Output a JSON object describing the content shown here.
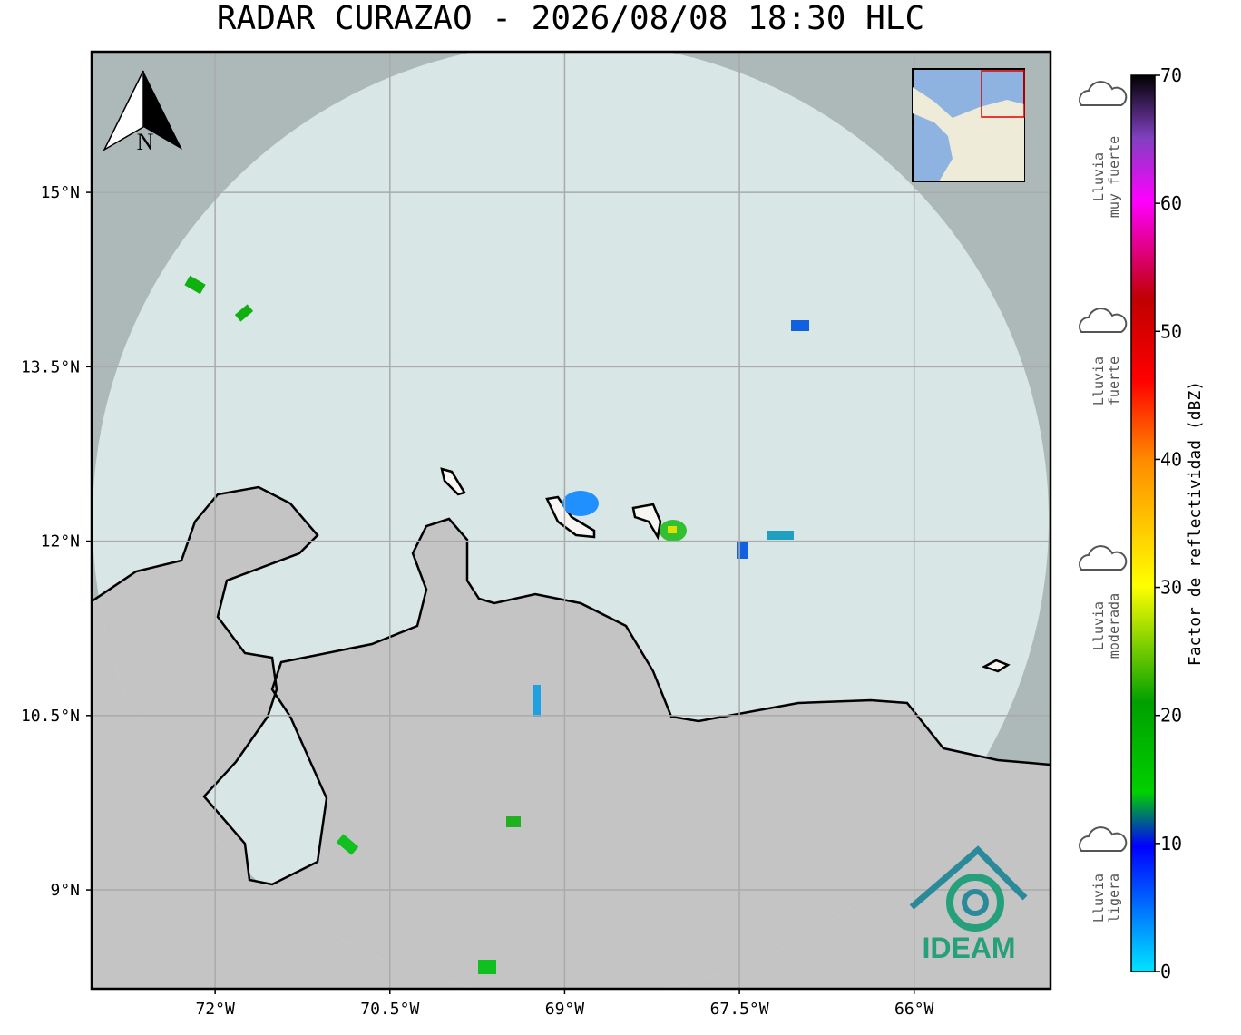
{
  "map": {
    "title": "RADAR CURAZAO - 2026/08/08 18:30 HLC",
    "north_label": "N",
    "lonlim": [
      -73.06,
      -64.83
    ],
    "latlim": [
      8.15,
      16.21
    ],
    "lon_ticks": [
      {
        "value": -72,
        "label": "72°W"
      },
      {
        "value": -70.5,
        "label": "70.5°W"
      },
      {
        "value": -69,
        "label": "69°W"
      },
      {
        "value": -67.5,
        "label": "67.5°W"
      },
      {
        "value": -66,
        "label": "66°W"
      }
    ],
    "lat_ticks": [
      {
        "value": 15,
        "label": "15°N"
      },
      {
        "value": 13.5,
        "label": "13.5°N"
      },
      {
        "value": 12,
        "label": "12°N"
      },
      {
        "value": 10.5,
        "label": "10.5°N"
      },
      {
        "value": 9,
        "label": "9°N"
      }
    ],
    "colorbar": {
      "label": "Factor de reflectividad (dBZ)",
      "lim": [
        0,
        70
      ],
      "ticks": [
        0,
        10,
        20,
        30,
        40,
        50,
        60,
        70
      ]
    },
    "rain_categories": [
      [
        "Lluvia",
        "muy fuerte"
      ],
      [
        "Lluvia",
        "fuerte"
      ],
      [
        "Lluvia",
        "moderada"
      ],
      [
        "Lluvia",
        "ligera"
      ]
    ],
    "logo_text": "IDEAM"
  }
}
